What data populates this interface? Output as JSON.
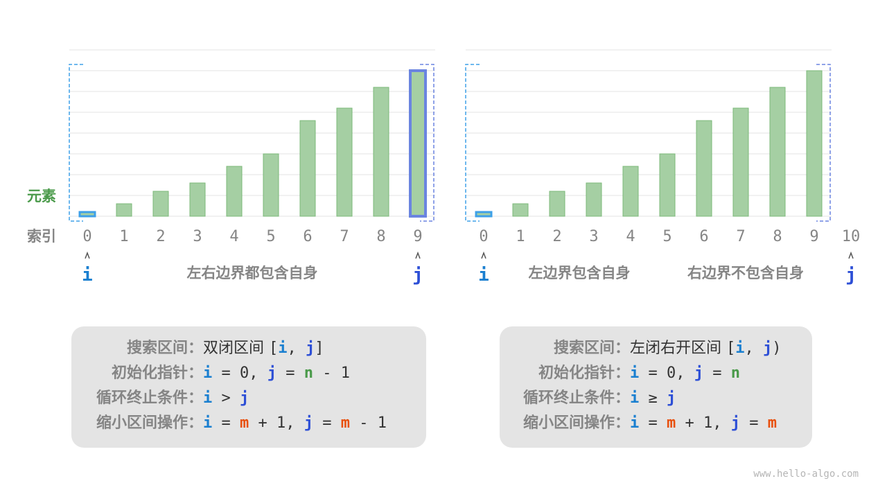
{
  "labels": {
    "element": "元素",
    "index": "索引"
  },
  "colors": {
    "bar_fill": "#a5cfa3",
    "bar_stroke": "#7cb87a",
    "i": "#1a7fd0",
    "j": "#2d4fd6",
    "m": "#e8500e",
    "n": "#4a9a4a",
    "bracket_left": "#3ea0e8",
    "bracket_right": "#6a84e0",
    "label_gray": "#858585",
    "element_label": "#4a9a4a"
  },
  "bar_values": [
    0.2,
    0.6,
    1.2,
    1.6,
    2.4,
    3.0,
    4.6,
    5.2,
    6.2,
    7.0
  ],
  "left_panel": {
    "indices": [
      "0",
      "1",
      "2",
      "3",
      "4",
      "5",
      "6",
      "7",
      "8",
      "9"
    ],
    "i_pointer": {
      "label": "i",
      "index": 0
    },
    "j_pointer": {
      "label": "j",
      "index": 9
    },
    "captions": [
      "左右边界都包含自身"
    ],
    "info": [
      {
        "label": "搜索区间：",
        "tokens": [
          {
            "text": "双闭区间 ",
            "role": "cn"
          },
          {
            "text": "[",
            "role": ""
          },
          {
            "text": "i",
            "role": "i"
          },
          {
            "text": ", ",
            "role": ""
          },
          {
            "text": "j",
            "role": "j"
          },
          {
            "text": "]",
            "role": ""
          }
        ]
      },
      {
        "label": "初始化指针：",
        "tokens": [
          {
            "text": "i",
            "role": "i"
          },
          {
            "text": " = 0, ",
            "role": ""
          },
          {
            "text": "j",
            "role": "j"
          },
          {
            "text": " = ",
            "role": ""
          },
          {
            "text": "n",
            "role": "n"
          },
          {
            "text": " - 1",
            "role": ""
          }
        ]
      },
      {
        "label": "循环终止条件：",
        "tokens": [
          {
            "text": "i",
            "role": "i"
          },
          {
            "text": " > ",
            "role": ""
          },
          {
            "text": "j",
            "role": "j"
          }
        ]
      },
      {
        "label": "缩小区间操作：",
        "tokens": [
          {
            "text": "i",
            "role": "i"
          },
          {
            "text": " = ",
            "role": ""
          },
          {
            "text": "m",
            "role": "m"
          },
          {
            "text": " + 1, ",
            "role": ""
          },
          {
            "text": "j",
            "role": "j"
          },
          {
            "text": " = ",
            "role": ""
          },
          {
            "text": "m",
            "role": "m"
          },
          {
            "text": " - 1",
            "role": ""
          }
        ]
      }
    ]
  },
  "right_panel": {
    "indices": [
      "0",
      "1",
      "2",
      "3",
      "4",
      "5",
      "6",
      "7",
      "8",
      "9",
      "10"
    ],
    "i_pointer": {
      "label": "i",
      "index": 0
    },
    "j_pointer": {
      "label": "j",
      "index": 10
    },
    "captions": [
      "左边界包含自身",
      "右边界不包含自身"
    ],
    "info": [
      {
        "label": "搜索区间：",
        "tokens": [
          {
            "text": "左闭右开区间 ",
            "role": "cn"
          },
          {
            "text": "[",
            "role": ""
          },
          {
            "text": "i",
            "role": "i"
          },
          {
            "text": ", ",
            "role": ""
          },
          {
            "text": "j",
            "role": "j"
          },
          {
            "text": ")",
            "role": ""
          }
        ]
      },
      {
        "label": "初始化指针：",
        "tokens": [
          {
            "text": "i",
            "role": "i"
          },
          {
            "text": " = 0, ",
            "role": ""
          },
          {
            "text": "j",
            "role": "j"
          },
          {
            "text": " = ",
            "role": ""
          },
          {
            "text": "n",
            "role": "n"
          }
        ]
      },
      {
        "label": "循环终止条件：",
        "tokens": [
          {
            "text": "i",
            "role": "i"
          },
          {
            "text": " ≥ ",
            "role": ""
          },
          {
            "text": "j",
            "role": "j"
          }
        ]
      },
      {
        "label": "缩小区间操作：",
        "tokens": [
          {
            "text": "i",
            "role": "i"
          },
          {
            "text": " = ",
            "role": ""
          },
          {
            "text": "m",
            "role": "m"
          },
          {
            "text": " + 1, ",
            "role": ""
          },
          {
            "text": "j",
            "role": "j"
          },
          {
            "text": " = ",
            "role": ""
          },
          {
            "text": "m",
            "role": "m"
          }
        ]
      }
    ]
  },
  "watermark": "www.hello-algo.com"
}
